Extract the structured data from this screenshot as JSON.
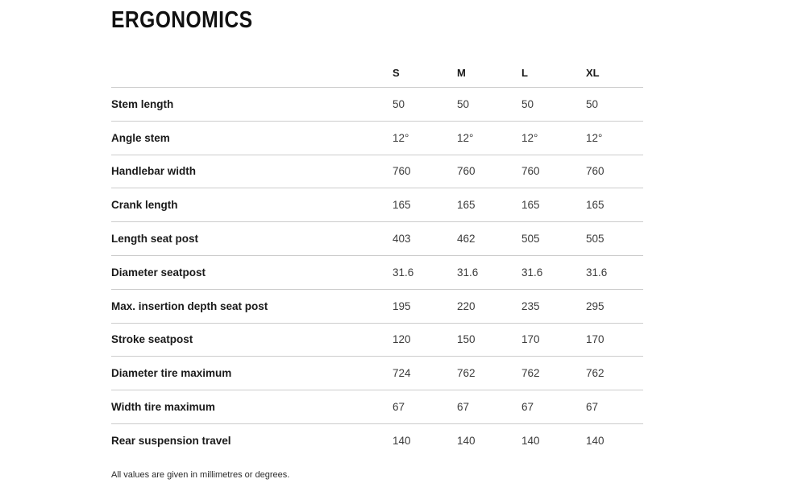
{
  "page": {
    "title": "ERGONOMICS",
    "footnote": "All values are given in millimetres or degrees."
  },
  "table": {
    "columns": [
      "S",
      "M",
      "L",
      "XL"
    ],
    "rows": [
      {
        "label": "Stem length",
        "values": [
          "50",
          "50",
          "50",
          "50"
        ]
      },
      {
        "label": "Angle stem",
        "values": [
          "12°",
          "12°",
          "12°",
          "12°"
        ]
      },
      {
        "label": "Handlebar width",
        "values": [
          "760",
          "760",
          "760",
          "760"
        ]
      },
      {
        "label": "Crank length",
        "values": [
          "165",
          "165",
          "165",
          "165"
        ]
      },
      {
        "label": "Length seat post",
        "values": [
          "403",
          "462",
          "505",
          "505"
        ]
      },
      {
        "label": "Diameter seatpost",
        "values": [
          "31.6",
          "31.6",
          "31.6",
          "31.6"
        ]
      },
      {
        "label": "Max. insertion depth seat post",
        "values": [
          "195",
          "220",
          "235",
          "295"
        ]
      },
      {
        "label": "Stroke seatpost",
        "values": [
          "120",
          "150",
          "170",
          "170"
        ]
      },
      {
        "label": "Diameter tire maximum",
        "values": [
          "724",
          "762",
          "762",
          "762"
        ]
      },
      {
        "label": "Width tire maximum",
        "values": [
          "67",
          "67",
          "67",
          "67"
        ]
      },
      {
        "label": "Rear suspension travel",
        "values": [
          "140",
          "140",
          "140",
          "140"
        ]
      }
    ]
  },
  "colors": {
    "text": "#1a1a1a",
    "divider": "#cccccc"
  }
}
